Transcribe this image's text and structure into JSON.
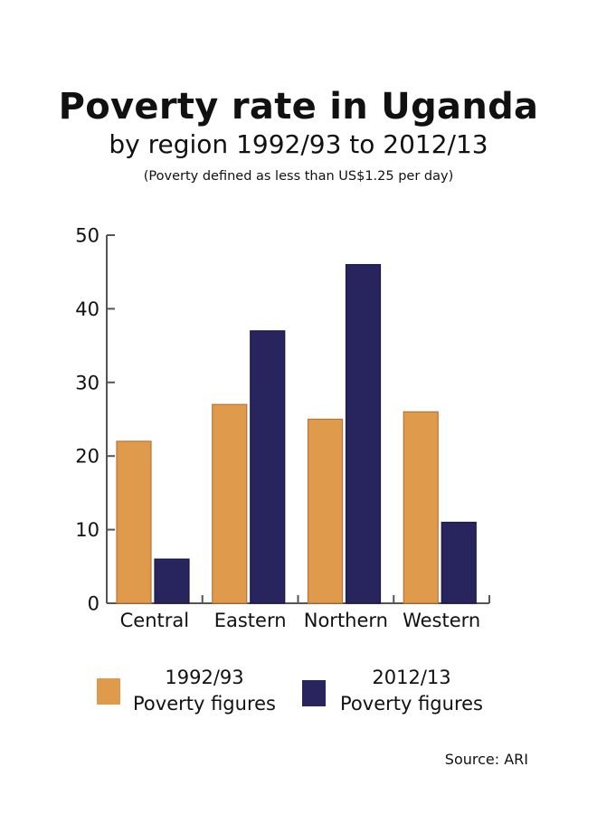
{
  "header": {
    "title": "Poverty rate in Uganda",
    "subtitle": "by region 1992/93 to 2012/13",
    "note": "(Poverty defined as less than US$1.25 per day)"
  },
  "legend": {
    "items": [
      {
        "line1": "1992/93",
        "line2": "Poverty figures",
        "color": "#E09A4C"
      },
      {
        "line1": "2012/13",
        "line2": "Poverty figures",
        "color": "#27245E"
      }
    ]
  },
  "source": "Source: ARI",
  "chart_data": {
    "type": "bar",
    "categories": [
      "Central",
      "Eastern",
      "Northern",
      "Western"
    ],
    "series": [
      {
        "name": "1992/93 Poverty figures",
        "values": [
          22,
          27,
          25,
          26
        ],
        "color": "#E09A4C"
      },
      {
        "name": "2012/13 Poverty figures",
        "values": [
          6,
          37,
          46,
          11
        ],
        "color": "#27245E"
      }
    ],
    "ylim": [
      0,
      50
    ],
    "yticks": [
      0,
      10,
      20,
      30,
      40,
      50
    ],
    "grid": false,
    "legend_position": "bottom"
  }
}
